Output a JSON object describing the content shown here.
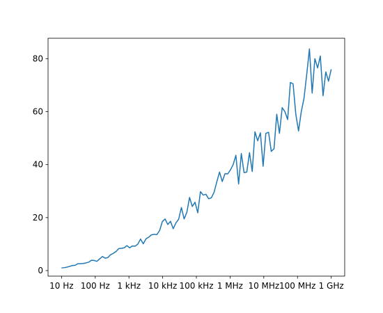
{
  "chart_data": {
    "type": "line",
    "xscale": "log",
    "x": [
      10,
      12.0,
      14.5,
      17.5,
      21.0,
      25.4,
      30.5,
      36.8,
      44.3,
      53.4,
      64.3,
      77.4,
      93.3,
      112,
      135,
      163,
      196,
      236,
      285,
      343,
      413,
      498,
      599,
      722,
      870,
      1048,
      1262,
      1520,
      1831,
      2205,
      2656,
      3199,
      3853,
      4642,
      5591,
      6734,
      8111,
      9770,
      11770,
      14170,
      17070,
      20560,
      24770,
      29830,
      35930,
      43290,
      52140,
      62800,
      75650,
      91120,
      109700,
      132200,
      159200,
      191800,
      231000,
      278300,
      335200,
      403700,
      486300,
      585700,
      705500,
      849800,
      1024000,
      1233000,
      1485000,
      1789000,
      2154000,
      2595000,
      3126000,
      3765000,
      4535000,
      5462000,
      6579000,
      7924000,
      9545000,
      11500000,
      13850000,
      16680000,
      20090000,
      24200000,
      29150000,
      35110000,
      42290000,
      50940000,
      61360000,
      73900000,
      89020000,
      107200000,
      129200000,
      155600000,
      187400000,
      225700000,
      271900000,
      327500000,
      394400000,
      475100000,
      572200000,
      689300000,
      830200000,
      1000000000
    ],
    "series": [
      {
        "color": "#1f77b4",
        "values": [
          1.0,
          1.1,
          1.3,
          1.6,
          1.9,
          2.0,
          2.6,
          2.6,
          2.7,
          2.9,
          3.2,
          3.9,
          3.8,
          3.5,
          4.4,
          5.3,
          4.7,
          4.9,
          6.0,
          6.5,
          7.2,
          8.3,
          8.4,
          8.6,
          9.4,
          8.6,
          9.3,
          9.2,
          10.0,
          11.9,
          10.1,
          12.0,
          12.6,
          13.5,
          13.7,
          13.6,
          15.1,
          18.5,
          19.5,
          17.4,
          18.6,
          15.8,
          18.0,
          19.4,
          23.8,
          19.5,
          22.0,
          27.6,
          24.2,
          25.8,
          21.8,
          29.8,
          28.5,
          28.8,
          27.1,
          27.5,
          29.6,
          33.5,
          37.2,
          33.6,
          36.6,
          36.5,
          38.0,
          40.0,
          43.5,
          32.7,
          44.2,
          37.0,
          37.2,
          44.5,
          37.4,
          52.4,
          49.0,
          52.0,
          39.4,
          51.8,
          52.2,
          45.0,
          46.0,
          59.0,
          51.8,
          61.5,
          60.0,
          57.0,
          71.0,
          70.5,
          59.0,
          52.7,
          60.0,
          65.0,
          74.0,
          83.7,
          67.0,
          80.0,
          76.5,
          81.0,
          66.0,
          75.0,
          71.5,
          76.0
        ]
      }
    ],
    "xlim": [
      3.98,
      2510000000
    ],
    "xticks": [
      {
        "value": 10,
        "label": "10 Hz"
      },
      {
        "value": 100,
        "label": "100 Hz"
      },
      {
        "value": 1000,
        "label": "1 kHz"
      },
      {
        "value": 10000,
        "label": "10 kHz"
      },
      {
        "value": 100000,
        "label": "100 kHz"
      },
      {
        "value": 1000000,
        "label": "1 MHz"
      },
      {
        "value": 10000000,
        "label": "10 MHz"
      },
      {
        "value": 100000000,
        "label": "100 MHz"
      },
      {
        "value": 1000000000,
        "label": "1 GHz"
      }
    ],
    "ylim": [
      -2.1,
      87.7
    ],
    "yticks": [
      0,
      20,
      40,
      60,
      80
    ],
    "grid": false
  }
}
